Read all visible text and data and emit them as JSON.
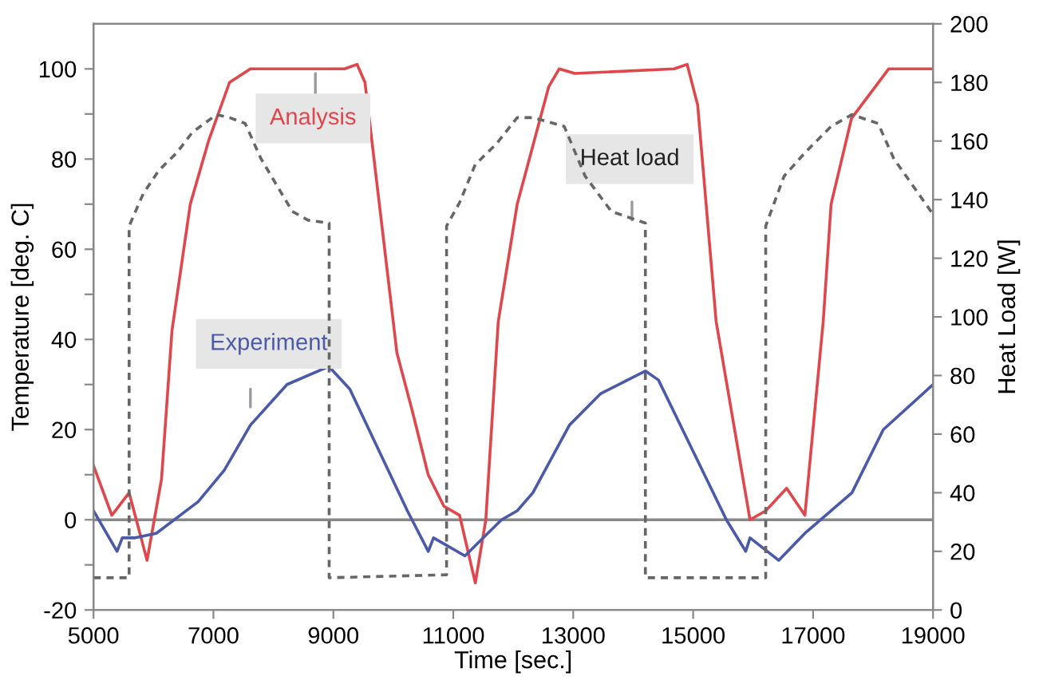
{
  "chart_data": {
    "type": "line",
    "xlabel": "Time [sec.]",
    "ylabel": "Temperature [deg. C]",
    "y2label": "Heat Load [W]",
    "xlim": [
      5000,
      19000
    ],
    "xticks": [
      5000,
      7000,
      9000,
      11000,
      13000,
      15000,
      17000,
      19000
    ],
    "ylim": [
      -20,
      110
    ],
    "yticks": [
      -20,
      {
        "value": -10,
        "label": null
      },
      0,
      {
        "value": 10,
        "label": null
      },
      20,
      {
        "value": 30,
        "label": null
      },
      40,
      {
        "value": 50,
        "label": null
      },
      60,
      {
        "value": 70,
        "label": null
      },
      80,
      {
        "value": 90,
        "label": null
      },
      100
    ],
    "y2lim": [
      0,
      200
    ],
    "y2ticks": [
      0,
      20,
      40,
      60,
      80,
      100,
      120,
      140,
      160,
      180,
      200
    ],
    "grid": false,
    "legend": false,
    "marker": "none",
    "ref_lines": [
      {
        "axis": "y",
        "value": 0,
        "color": "#888888"
      }
    ],
    "series": [
      {
        "name": "Analysis",
        "color": "#e0474c",
        "line_style": "solid",
        "x": [
          5000,
          5306,
          5594,
          5893,
          6134,
          6309,
          6614,
          6918,
          7268,
          7617,
          9187,
          9396,
          9527,
          10060,
          10319,
          10581,
          10843,
          11105,
          11367,
          11542,
          11750,
          12066,
          12590,
          12765,
          13026,
          14683,
          14900,
          15075,
          15383,
          15948,
          16210,
          16559,
          16863,
          17169,
          17300,
          17640,
          18260,
          18425,
          19000
        ],
        "values": [
          12,
          1,
          6,
          -9,
          9,
          42,
          70,
          84,
          97,
          100,
          100,
          101,
          97,
          37,
          24,
          10,
          3,
          1,
          -14,
          0,
          44,
          70,
          96,
          100,
          99,
          100,
          101,
          92,
          44,
          0,
          2,
          7,
          1,
          44,
          70,
          89,
          100,
          100,
          100
        ]
      },
      {
        "name": "Experiment",
        "color": "#4a5aa8",
        "line_style": "solid",
        "x": [
          5000,
          5393,
          5480,
          5698,
          6047,
          6745,
          7181,
          7617,
          8227,
          8926,
          9274,
          10234,
          10583,
          10670,
          11194,
          11804,
          12066,
          12327,
          12937,
          13460,
          14203,
          14421,
          15554,
          15877,
          15948,
          16428,
          16863,
          17300,
          17648,
          18171,
          19000
        ],
        "values": [
          2,
          -7,
          -4,
          -4,
          -3,
          4,
          11,
          21,
          30,
          34,
          29,
          2,
          -7,
          -4,
          -8,
          0,
          2,
          6,
          21,
          28,
          33,
          31,
          0,
          -7,
          -4,
          -9,
          -3,
          2,
          6,
          20,
          30
        ]
      },
      {
        "name": "Heat load",
        "color": "#666666",
        "line_style": "dashed",
        "axis": "y2",
        "x": [
          5000,
          5594,
          5594,
          5829,
          6091,
          6388,
          6650,
          7050,
          7268,
          7530,
          7792,
          8053,
          8315,
          8577,
          8930,
          8930,
          10888,
          10888,
          11105,
          11367,
          11717,
          12066,
          12327,
          12850,
          13199,
          13635,
          14203,
          14203,
          16210,
          16210,
          16516,
          16863,
          17300,
          17648,
          18084,
          18346,
          19000
        ],
        "values": [
          11,
          11,
          131,
          142,
          150,
          156,
          163,
          169,
          168,
          166,
          154,
          145,
          136,
          133,
          132,
          11,
          12,
          131,
          139,
          152,
          159,
          168,
          168,
          165,
          148,
          136,
          132,
          11,
          11,
          131,
          148,
          156,
          165,
          169,
          166,
          154,
          135
        ]
      }
    ]
  }
}
